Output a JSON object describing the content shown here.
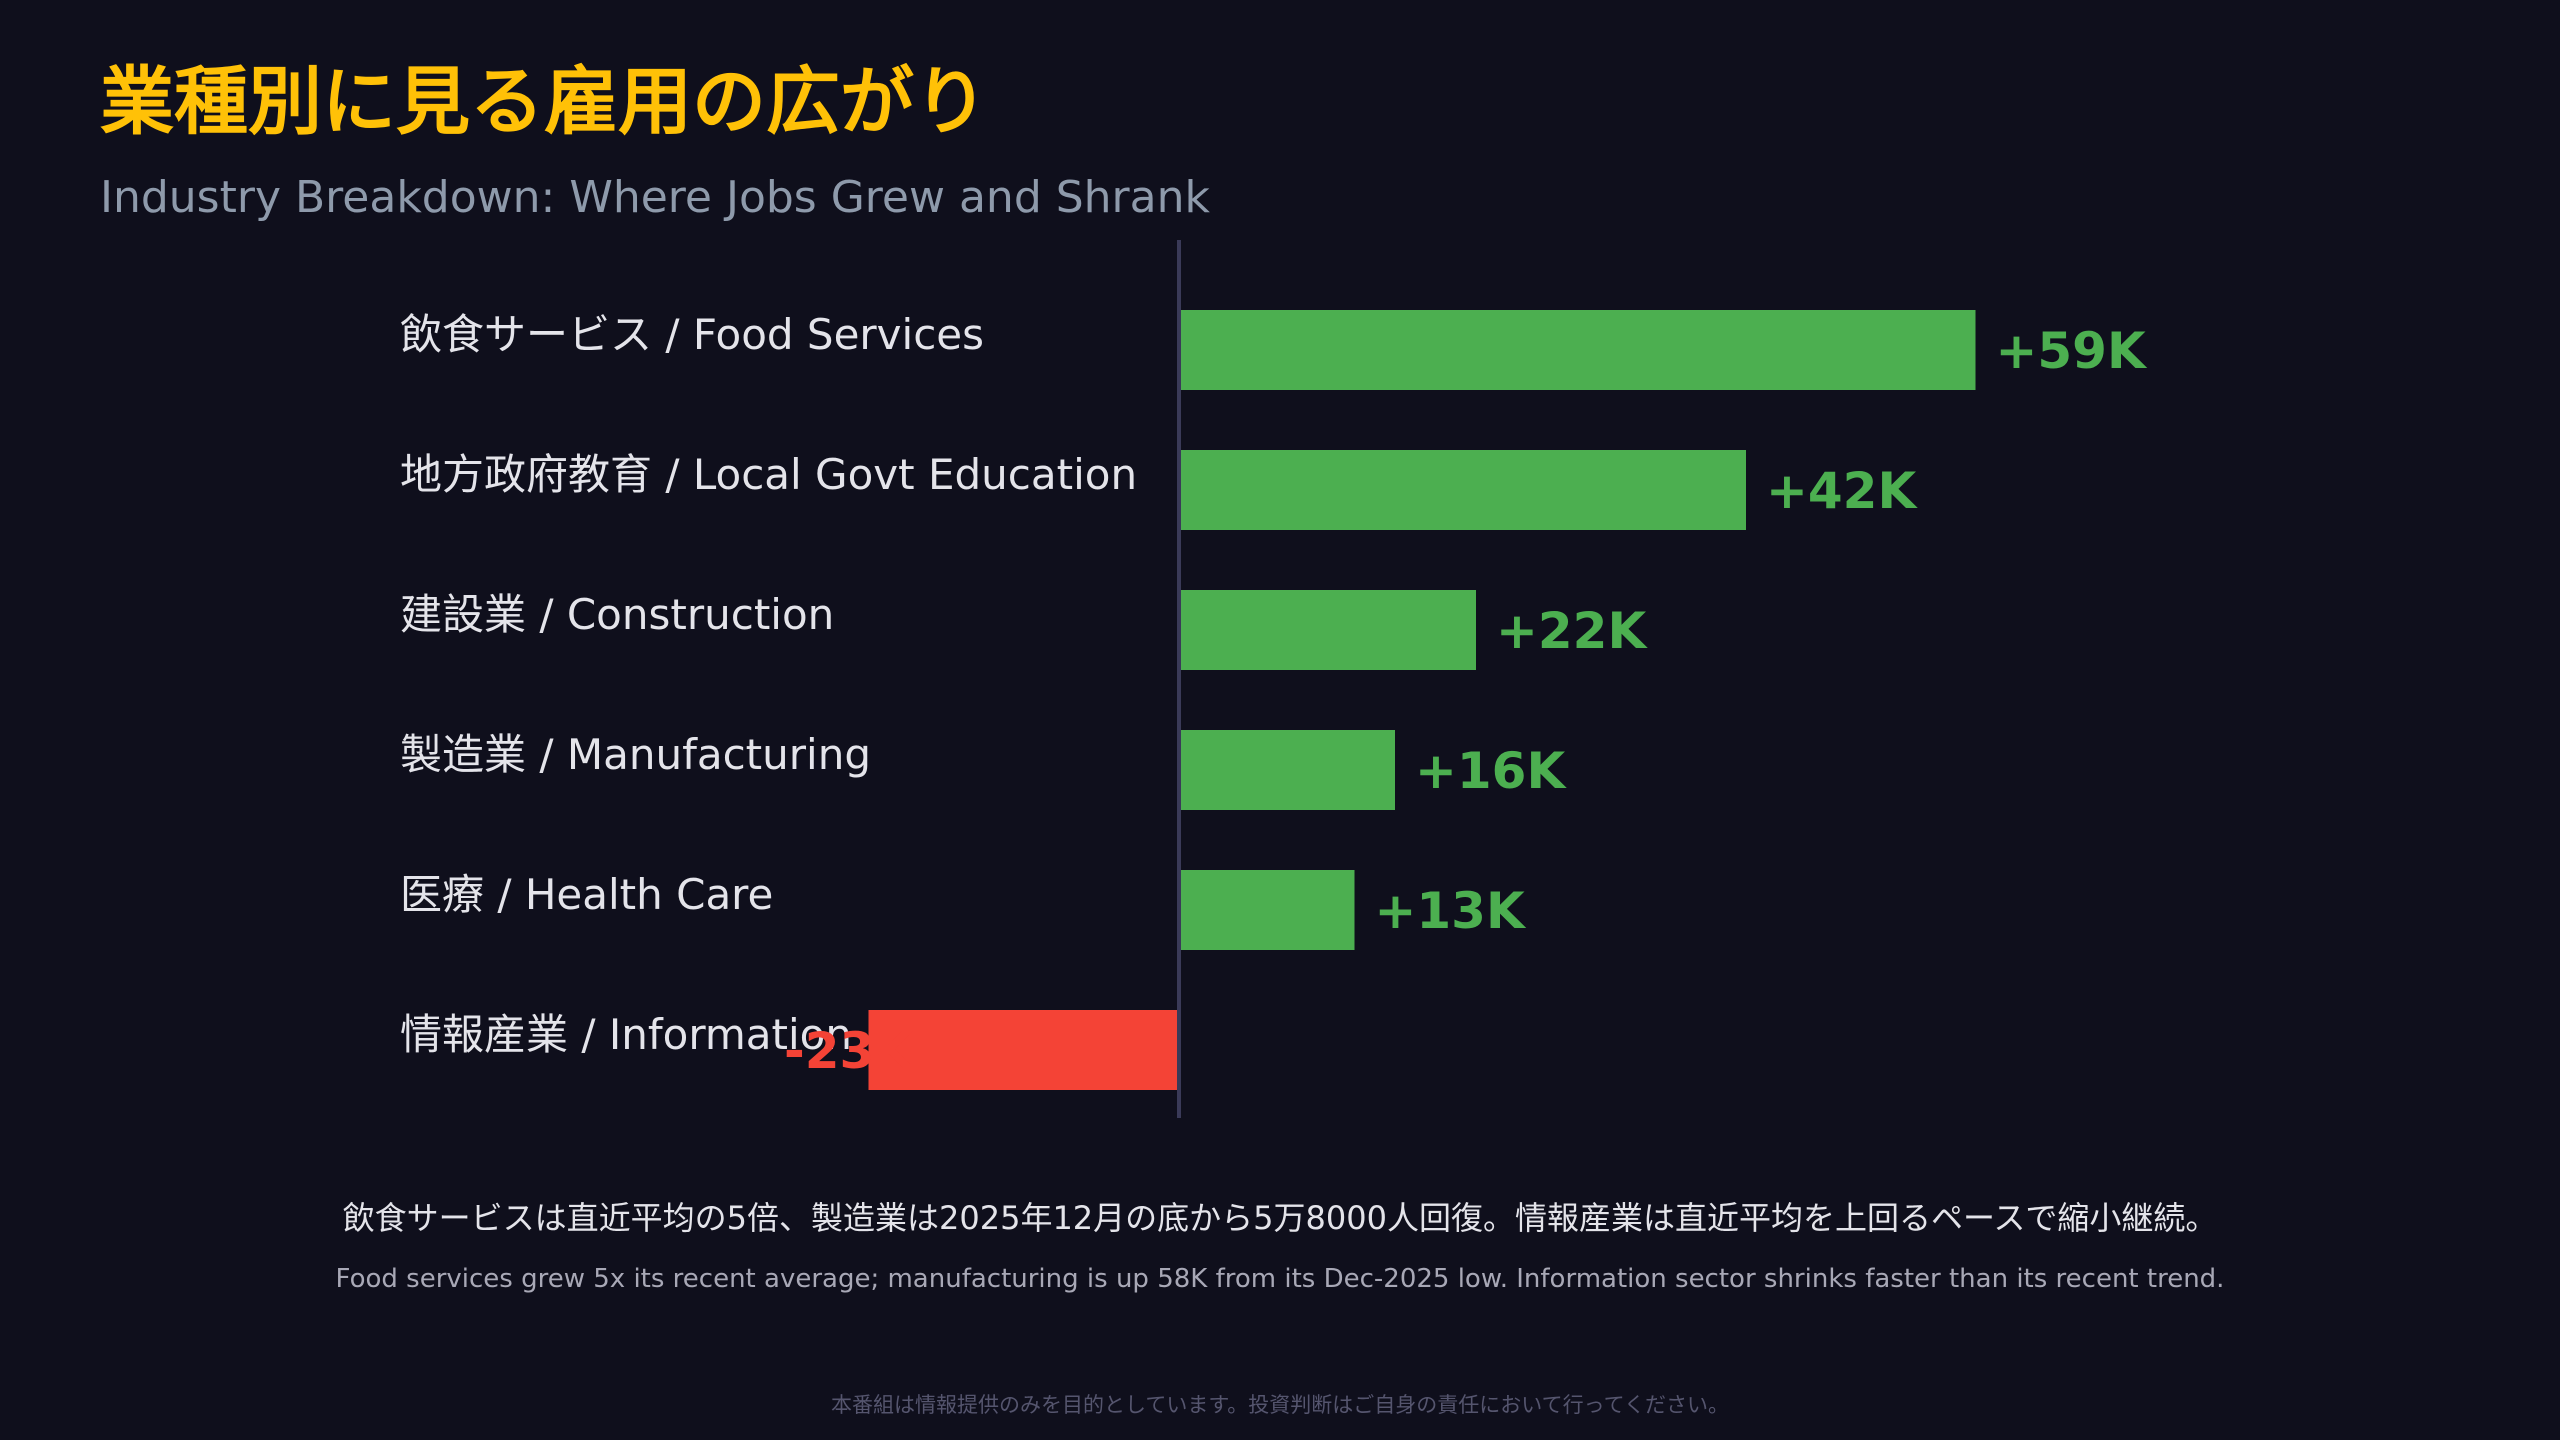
{
  "title": "業種別に見る雇用の広がり",
  "subtitle": "Industry Breakdown: Where Jobs Grew and Shrank",
  "chart_data": {
    "type": "bar",
    "orientation": "horizontal",
    "categories": [
      "飲食サービス / Food Services",
      "地方政府教育 / Local Govt Education",
      "建設業 / Construction",
      "製造業 / Manufacturing",
      "医療 / Health Care",
      "情報産業 / Information"
    ],
    "values": [
      59,
      42,
      22,
      16,
      13,
      -23
    ],
    "value_labels": [
      "+59K",
      "+42K",
      "+22K",
      "+16K",
      "+13K",
      "-23K"
    ],
    "positive_color": "#4caf50",
    "negative_color": "#f44336",
    "grid": false
  },
  "notes": {
    "ja": "飲食サービスは直近平均の5倍、製造業は2025年12月の底から5万8000人回復。情報産業は直近平均を上回るペースで縮小継続。",
    "en": "Food services grew 5x its recent average; manufacturing is up 58K from its Dec-2025 low. Information sector shrinks faster than its recent trend."
  },
  "disclaimer": "本番組は情報提供のみを目的としています。投資判断はご自身の責任において行ってください。"
}
